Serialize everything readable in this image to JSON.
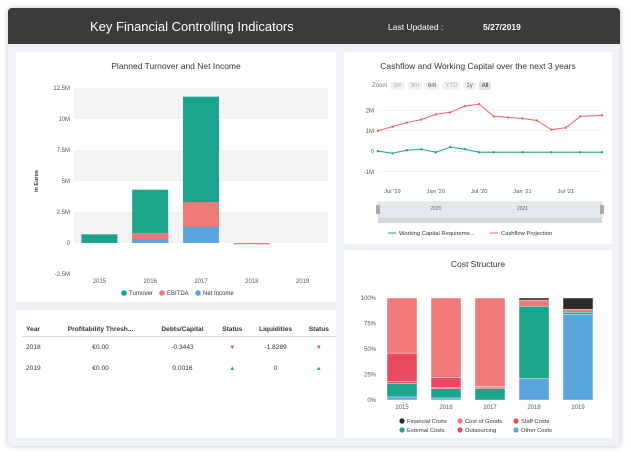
{
  "header": {
    "title": "Key Financial Controlling Indicators",
    "last_updated_label": "Last Updated :",
    "last_updated_value": "5/27/2019"
  },
  "panels": {
    "turnover": {
      "title": "Planned Turnover and Net Income"
    },
    "cashflow": {
      "title": "Cashflow and Working Capital over the next 3 years"
    },
    "cost": {
      "title": "Cost Structure"
    }
  },
  "zoom": {
    "label": "Zoom",
    "buttons": [
      "1m",
      "3m",
      "6m",
      "YTD",
      "1y",
      "All"
    ],
    "selected": "All"
  },
  "ratios_table": {
    "headers": [
      "Year",
      "Profitability Thresh...",
      "Debts/Capital",
      "Status",
      "Liquidities",
      "Status"
    ],
    "rows": [
      {
        "year": "2018",
        "profitability": "€0.00",
        "debts": "-0.3443",
        "status1": "▼",
        "liquidities": "-1.8289",
        "status2": "▼"
      },
      {
        "year": "2019",
        "profitability": "€0.00",
        "debts": "0.0016",
        "status1": "▲",
        "liquidities": "0",
        "status2": "▲"
      }
    ]
  },
  "colors": {
    "turnover": "#1aa58c",
    "ebitda": "#f07a7a",
    "net_income": "#5aa6dc",
    "financial": "#2c2c2c",
    "goods": "#f07a7a",
    "staff": "#e84a5f",
    "external": "#1aa58c",
    "outsourcing": "#e8476a",
    "other": "#5aa6dc",
    "working_capital": "#1aa58c",
    "cashflow": "#e86464"
  },
  "chart_data": [
    {
      "id": "turnover",
      "type": "bar",
      "title": "Planned Turnover and Net Income",
      "ylabel": "in Euros",
      "categories": [
        "2015",
        "2016",
        "2017",
        "2018",
        "2019"
      ],
      "y_ticks": [
        "12.5M",
        "10M",
        "7.5M",
        "5M",
        "2.5M",
        "0",
        "-2.5M"
      ],
      "ylim": [
        -2500000,
        12500000
      ],
      "series": [
        {
          "name": "Turnover",
          "values": [
            700000,
            4300000,
            11800000,
            0,
            0
          ]
        },
        {
          "name": "EBITDA",
          "values": [
            0,
            800000,
            3300000,
            -100000,
            0
          ]
        },
        {
          "name": "Net Income",
          "values": [
            0,
            300000,
            1300000,
            0,
            0
          ]
        }
      ],
      "legend": "bottom"
    },
    {
      "id": "cashflow",
      "type": "line",
      "title": "Cashflow and Working Capital over the next 3 years",
      "y_ticks": [
        "2M",
        "1M",
        "0",
        "-1M"
      ],
      "ylim": [
        -1500000,
        2500000
      ],
      "x_ticks": [
        "Jul '19",
        "Jan '20",
        "Jul '20",
        "Jan '21",
        "Jul '21"
      ],
      "navigator_labels": [
        "2020",
        "2021"
      ],
      "series": [
        {
          "name": "Working Capital Requireme...",
          "x": [
            "2019-05",
            "2019-07",
            "2019-09",
            "2019-11",
            "2020-01",
            "2020-03",
            "2020-05",
            "2020-07",
            "2020-09",
            "2021-01",
            "2021-05",
            "2021-09",
            "2021-12"
          ],
          "values": [
            0,
            -100000,
            50000,
            100000,
            -50000,
            200000,
            100000,
            -50000,
            -50000,
            -50000,
            -50000,
            -50000,
            -50000
          ]
        },
        {
          "name": "Cashflow Projection",
          "x": [
            "2019-05",
            "2019-07",
            "2019-09",
            "2019-11",
            "2020-01",
            "2020-03",
            "2020-05",
            "2020-07",
            "2020-09",
            "2020-11",
            "2021-01",
            "2021-03",
            "2021-05",
            "2021-07",
            "2021-09",
            "2021-12"
          ],
          "values": [
            1000000,
            1200000,
            1400000,
            1550000,
            1800000,
            1900000,
            2200000,
            2300000,
            1700000,
            1650000,
            1600000,
            1500000,
            1050000,
            1150000,
            1700000,
            1750000
          ]
        }
      ],
      "legend": "bottom"
    },
    {
      "id": "cost",
      "type": "bar",
      "title": "Cost Structure",
      "categories": [
        "2015",
        "2016",
        "2017",
        "2018",
        "2019"
      ],
      "y_ticks": [
        "100%",
        "75%",
        "50%",
        "25%",
        "0%"
      ],
      "ylim": [
        0,
        100
      ],
      "stacked": true,
      "series": [
        {
          "name": "Other Costs",
          "values": [
            3,
            2,
            0,
            21,
            84
          ]
        },
        {
          "name": "External Costs",
          "values": [
            13,
            9,
            11,
            71,
            2
          ]
        },
        {
          "name": "Outsourcing",
          "values": [
            2,
            1,
            1,
            0,
            0
          ]
        },
        {
          "name": "Staff Costs",
          "values": [
            28,
            10,
            1,
            0,
            0
          ]
        },
        {
          "name": "Cost of Goods",
          "values": [
            54,
            78,
            87,
            6,
            3
          ]
        },
        {
          "name": "Financial Costs",
          "values": [
            0,
            0,
            0,
            2,
            11
          ]
        }
      ],
      "legend": "bottom"
    }
  ]
}
